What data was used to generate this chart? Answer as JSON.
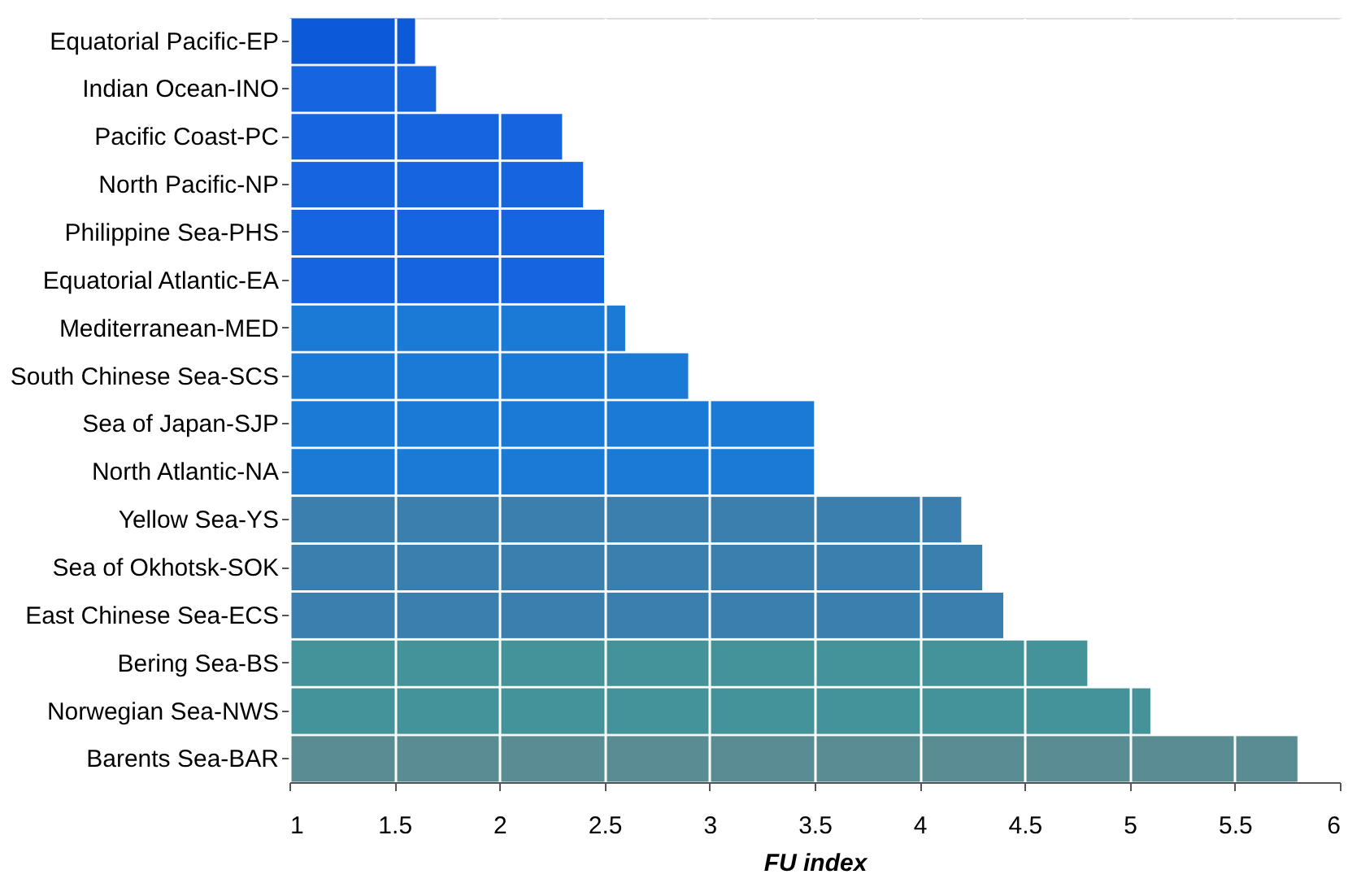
{
  "chart_data": {
    "type": "bar",
    "orientation": "horizontal",
    "xlabel": "FU index",
    "categories": [
      "Equatorial Pacific-EP",
      "Indian Ocean-INO",
      "Pacific Coast-PC",
      "North Pacific-NP",
      "Philippine Sea-PHS",
      "Equatorial Atlantic-EA",
      "Mediterranean-MED",
      "South Chinese Sea-SCS",
      "Sea of Japan-SJP",
      "North Atlantic-NA",
      "Yellow Sea-YS",
      "Sea of Okhotsk-SOK",
      "East Chinese Sea-ECS",
      "Bering Sea-BS",
      "Norwegian Sea-NWS",
      "Barents Sea-BAR"
    ],
    "values": [
      1.6,
      1.7,
      2.3,
      2.4,
      2.5,
      2.5,
      2.6,
      2.9,
      3.5,
      3.5,
      4.2,
      4.3,
      4.4,
      4.8,
      5.1,
      5.8
    ],
    "colors": [
      "#0d5ad8",
      "#1565e0",
      "#1565e0",
      "#1565e0",
      "#1565e0",
      "#1565e0",
      "#1a7ad6",
      "#1a7ad6",
      "#1a7ad6",
      "#1a7ad6",
      "#3a7fae",
      "#3a7fae",
      "#3a7fae",
      "#45939a",
      "#45939a",
      "#5a8c94"
    ],
    "xlim": [
      1,
      6
    ],
    "xticks": [
      1,
      1.5,
      2,
      2.5,
      3,
      3.5,
      4,
      4.5,
      5,
      5.5,
      6
    ],
    "grid": "x"
  }
}
